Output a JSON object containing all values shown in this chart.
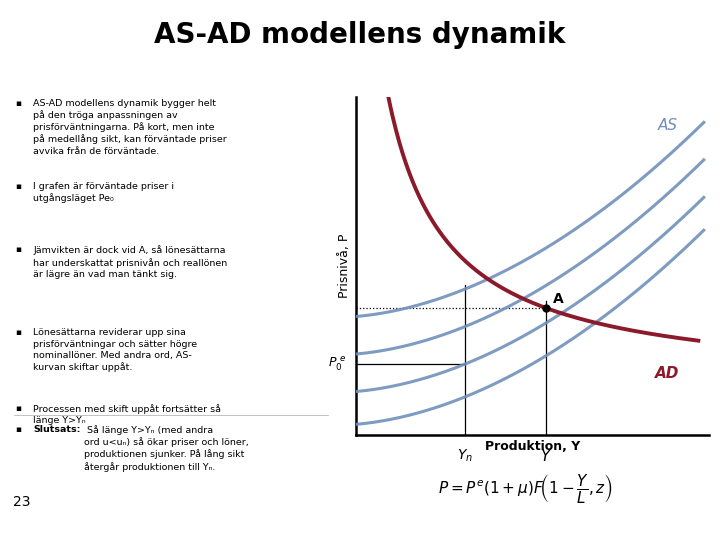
{
  "title": "AS-AD modellens dynamik",
  "title_fontsize": 20,
  "title_color": "#000000",
  "bg_color": "#ffffff",
  "text_box_bg": "#c8eaf5",
  "dark_bar_color": "#1a3a1a",
  "ylabel": "Prisnivå, P",
  "xlabel": "Produktion, Y",
  "AD_color": "#8b1a2a",
  "AS_color": "#7090bb",
  "Yn_x": 3.0,
  "Y_x": 4.5,
  "P0e_y": 1.8,
  "PA_y": 3.0,
  "xlim": [
    1.0,
    7.5
  ],
  "ylim": [
    0.3,
    7.5
  ],
  "as_shifts": [
    0.5,
    1.2,
    2.0,
    2.8
  ],
  "bullet_texts": [
    "AS-AD modellens dynamik bygger helt\npå den tröga anpassningen av\nprisförväntningarna. På kort, men inte\npå medellång sikt, kan förväntade priser\navvika från de förväntade.",
    "I grafen är förväntade priser i\nutgångsläget Pe₀",
    "Jämvikten är dock vid A, så lönesättarna\nhar underskattat prisnivån och reallönen\när lägre än vad man tänkt sig.",
    "Lönesättarna reviderar upp sina\nprisförväntningar och sätter högre\nnominallöner. Med andra ord, AS-\nkurvan skiftar uppåt.",
    "Processen med skift uppåt fortsätter så\nlänge Y>Yₙ"
  ],
  "slutsats_bold": "Slutsats:",
  "slutsats_rest": " Så länge Y>Yₙ (med andra\nord u<uₙ) så ökar priser och löner,\nproduktionen sjunker. På lång sikt\nåtergår produktionen till Yₙ.",
  "page_num": "23"
}
